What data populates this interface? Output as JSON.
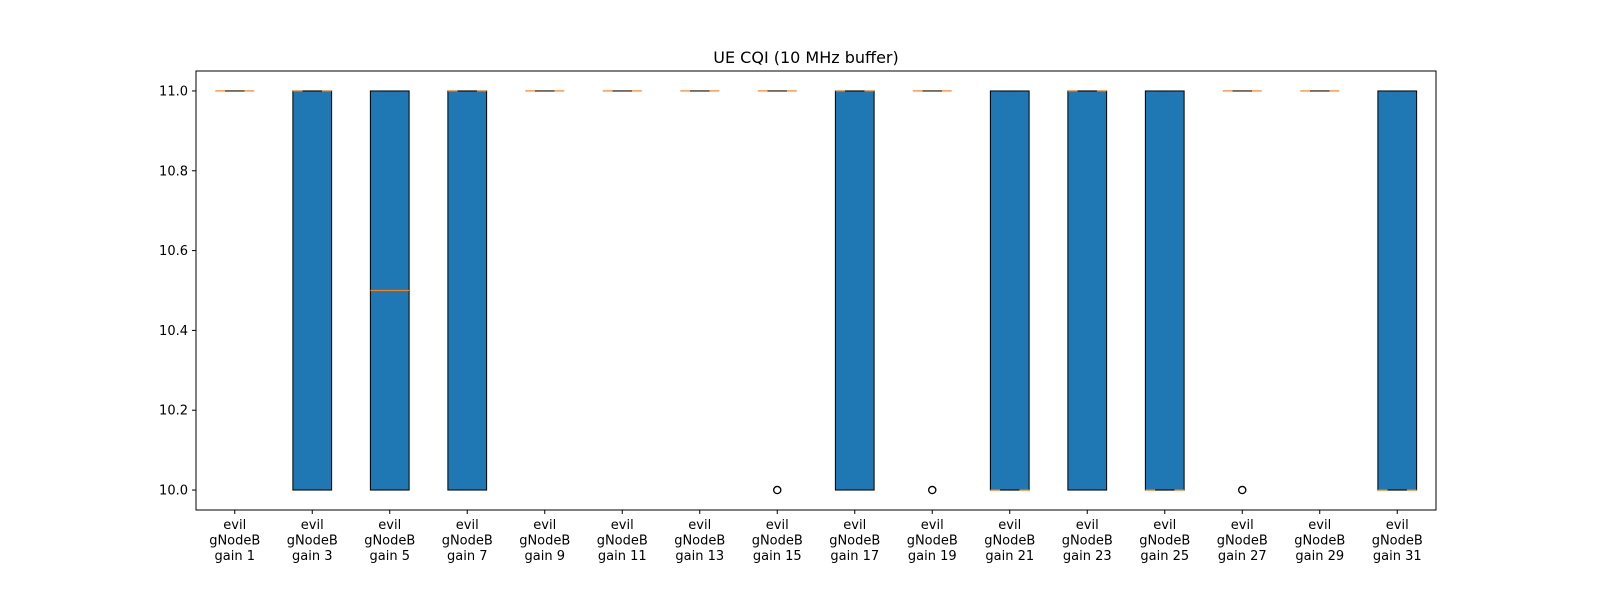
{
  "chart_data": {
    "type": "boxplot",
    "title": "UE CQI (10 MHz buffer)",
    "xlabel": "",
    "ylabel": "",
    "ylim": [
      9.95,
      11.05
    ],
    "yticks": [
      "10.0",
      "10.2",
      "10.4",
      "10.6",
      "10.8",
      "11.0"
    ],
    "grid": false,
    "colors": {
      "box": "#1f77b4",
      "median": "#ff7f0e",
      "edge": "#000000"
    },
    "categories": [
      [
        "evil",
        "gNodeB",
        "gain 1"
      ],
      [
        "evil",
        "gNodeB",
        "gain 3"
      ],
      [
        "evil",
        "gNodeB",
        "gain 5"
      ],
      [
        "evil",
        "gNodeB",
        "gain 7"
      ],
      [
        "evil",
        "gNodeB",
        "gain 9"
      ],
      [
        "evil",
        "gNodeB",
        "gain 11"
      ],
      [
        "evil",
        "gNodeB",
        "gain 13"
      ],
      [
        "evil",
        "gNodeB",
        "gain 15"
      ],
      [
        "evil",
        "gNodeB",
        "gain 17"
      ],
      [
        "evil",
        "gNodeB",
        "gain 19"
      ],
      [
        "evil",
        "gNodeB",
        "gain 21"
      ],
      [
        "evil",
        "gNodeB",
        "gain 23"
      ],
      [
        "evil",
        "gNodeB",
        "gain 25"
      ],
      [
        "evil",
        "gNodeB",
        "gain 27"
      ],
      [
        "evil",
        "gNodeB",
        "gain 29"
      ],
      [
        "evil",
        "gNodeB",
        "gain 31"
      ]
    ],
    "boxes": [
      {
        "q1": 11,
        "median": 11,
        "q3": 11,
        "whisker_low": 11,
        "whisker_high": 11,
        "outliers": []
      },
      {
        "q1": 10,
        "median": 11,
        "q3": 11,
        "whisker_low": 10,
        "whisker_high": 11,
        "outliers": []
      },
      {
        "q1": 10,
        "median": 10.5,
        "q3": 11,
        "whisker_low": 10,
        "whisker_high": 11,
        "outliers": []
      },
      {
        "q1": 10,
        "median": 11,
        "q3": 11,
        "whisker_low": 10,
        "whisker_high": 11,
        "outliers": []
      },
      {
        "q1": 11,
        "median": 11,
        "q3": 11,
        "whisker_low": 11,
        "whisker_high": 11,
        "outliers": []
      },
      {
        "q1": 11,
        "median": 11,
        "q3": 11,
        "whisker_low": 11,
        "whisker_high": 11,
        "outliers": []
      },
      {
        "q1": 11,
        "median": 11,
        "q3": 11,
        "whisker_low": 11,
        "whisker_high": 11,
        "outliers": []
      },
      {
        "q1": 11,
        "median": 11,
        "q3": 11,
        "whisker_low": 11,
        "whisker_high": 11,
        "outliers": [
          10
        ]
      },
      {
        "q1": 10,
        "median": 11,
        "q3": 11,
        "whisker_low": 10,
        "whisker_high": 11,
        "outliers": []
      },
      {
        "q1": 11,
        "median": 11,
        "q3": 11,
        "whisker_low": 11,
        "whisker_high": 11,
        "outliers": [
          10
        ]
      },
      {
        "q1": 10,
        "median": 10,
        "q3": 11,
        "whisker_low": 10,
        "whisker_high": 11,
        "outliers": []
      },
      {
        "q1": 10,
        "median": 11,
        "q3": 11,
        "whisker_low": 10,
        "whisker_high": 11,
        "outliers": []
      },
      {
        "q1": 10,
        "median": 10,
        "q3": 11,
        "whisker_low": 10,
        "whisker_high": 11,
        "outliers": []
      },
      {
        "q1": 11,
        "median": 11,
        "q3": 11,
        "whisker_low": 11,
        "whisker_high": 11,
        "outliers": [
          10
        ]
      },
      {
        "q1": 11,
        "median": 11,
        "q3": 11,
        "whisker_low": 11,
        "whisker_high": 11,
        "outliers": []
      },
      {
        "q1": 10,
        "median": 10,
        "q3": 11,
        "whisker_low": 10,
        "whisker_high": 11,
        "outliers": []
      }
    ]
  }
}
